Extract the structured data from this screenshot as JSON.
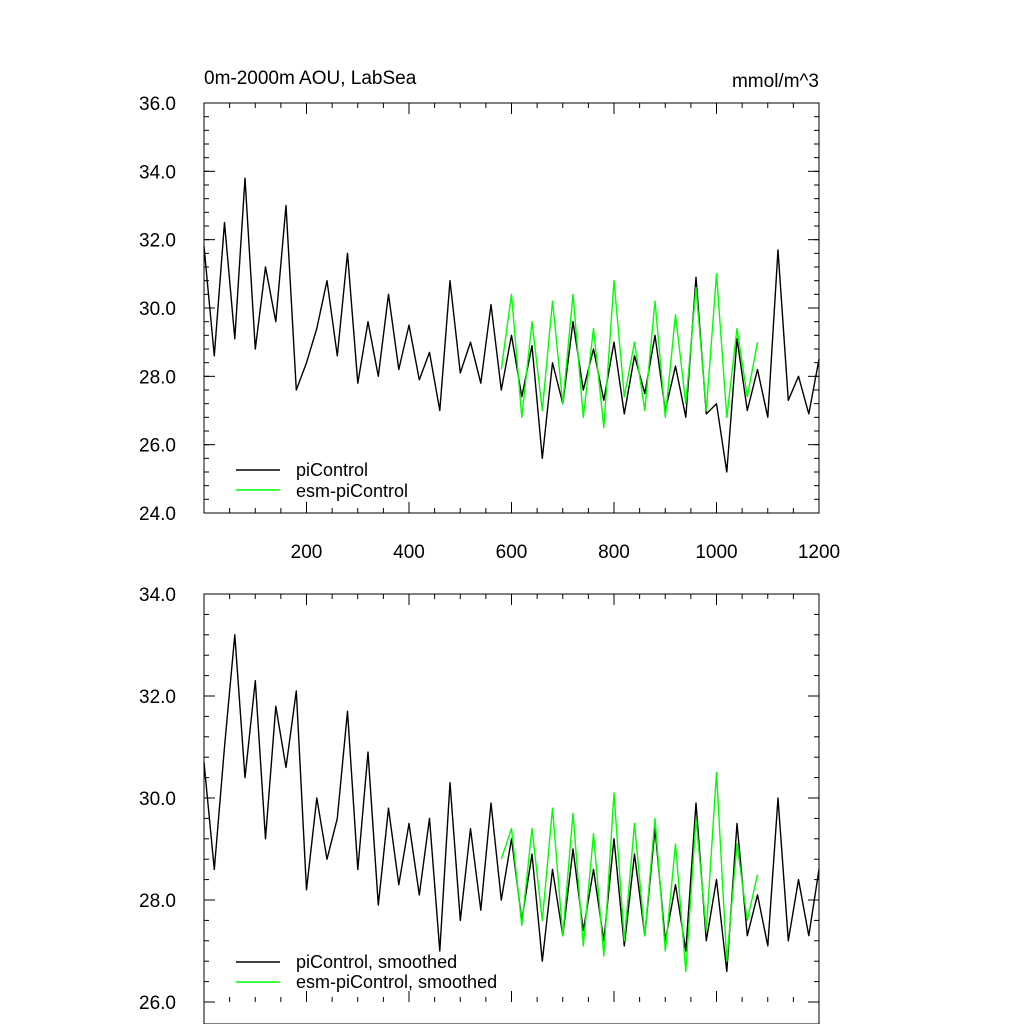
{
  "chart_data": [
    {
      "type": "line",
      "title": "0m-2000m AOU, LabSea",
      "units": "mmol/m^3",
      "xlabel": "",
      "ylabel": "",
      "xlim": [
        0,
        1200
      ],
      "ylim": [
        24.0,
        36.0
      ],
      "xticks": [
        200,
        400,
        600,
        800,
        1000,
        1200
      ],
      "xtick_labels": [
        "200",
        "400",
        "600",
        "800",
        "1000",
        "1200"
      ],
      "yticks": [
        24.0,
        26.0,
        28.0,
        30.0,
        32.0,
        34.0,
        36.0
      ],
      "ytick_labels": [
        "24.0",
        "26.0",
        "28.0",
        "30.0",
        "32.0",
        "34.0",
        "36.0"
      ],
      "grid": false,
      "legend_position": "bottom-left",
      "series": [
        {
          "name": "piControl",
          "color": "#000000",
          "x": [
            0,
            20,
            40,
            60,
            80,
            100,
            120,
            140,
            160,
            180,
            200,
            220,
            240,
            260,
            280,
            300,
            320,
            340,
            360,
            380,
            400,
            420,
            440,
            460,
            480,
            500,
            520,
            540,
            560,
            580,
            600,
            620,
            640,
            660,
            680,
            700,
            720,
            740,
            760,
            780,
            800,
            820,
            840,
            860,
            880,
            900,
            920,
            940,
            960,
            980,
            1000,
            1020,
            1040,
            1060,
            1080,
            1100,
            1120,
            1140,
            1160,
            1180,
            1200
          ],
          "y": [
            31.8,
            28.6,
            32.5,
            29.1,
            33.8,
            28.8,
            31.2,
            29.6,
            33.0,
            27.6,
            28.4,
            29.4,
            30.8,
            28.6,
            31.6,
            27.8,
            29.6,
            28.0,
            30.4,
            28.2,
            29.5,
            27.9,
            28.7,
            27.0,
            30.8,
            28.1,
            29.0,
            27.8,
            30.1,
            27.6,
            29.2,
            27.4,
            28.9,
            25.6,
            28.4,
            27.2,
            29.6,
            27.6,
            28.8,
            27.3,
            29.0,
            26.9,
            28.6,
            27.5,
            29.2,
            27.0,
            28.3,
            26.8,
            30.9,
            26.9,
            27.2,
            25.2,
            29.1,
            27.0,
            28.2,
            26.8,
            31.7,
            27.3,
            28.0,
            26.9,
            28.5
          ]
        },
        {
          "name": "esm-piControl",
          "color": "#00ff00",
          "x": [
            580,
            600,
            620,
            640,
            660,
            680,
            700,
            720,
            740,
            760,
            780,
            800,
            820,
            840,
            860,
            880,
            900,
            920,
            940,
            960,
            980,
            1000,
            1020,
            1040,
            1060,
            1080
          ],
          "y": [
            28.2,
            30.4,
            26.8,
            29.6,
            27.0,
            30.2,
            27.2,
            30.4,
            26.8,
            29.4,
            26.5,
            30.8,
            27.4,
            29.0,
            27.0,
            30.2,
            26.8,
            29.8,
            27.2,
            30.6,
            27.0,
            31.0,
            26.8,
            29.4,
            27.4,
            29.0
          ]
        }
      ]
    },
    {
      "type": "line",
      "title": "",
      "xlabel": "",
      "ylabel": "",
      "xlim": [
        0,
        1200
      ],
      "ylim": [
        26.0,
        34.0
      ],
      "yticks": [
        26.0,
        28.0,
        30.0,
        32.0,
        34.0
      ],
      "ytick_labels": [
        "26.0",
        "28.0",
        "30.0",
        "32.0",
        "34.0"
      ],
      "grid": false,
      "legend_position": "bottom-left",
      "series": [
        {
          "name": "piControl, smoothed",
          "color": "#000000",
          "x": [
            0,
            20,
            40,
            60,
            80,
            100,
            120,
            140,
            160,
            180,
            200,
            220,
            240,
            260,
            280,
            300,
            320,
            340,
            360,
            380,
            400,
            420,
            440,
            460,
            480,
            500,
            520,
            540,
            560,
            580,
            600,
            620,
            640,
            660,
            680,
            700,
            720,
            740,
            760,
            780,
            800,
            820,
            840,
            860,
            880,
            900,
            920,
            940,
            960,
            980,
            1000,
            1020,
            1040,
            1060,
            1080,
            1100,
            1120,
            1140,
            1160,
            1180,
            1200
          ],
          "y": [
            30.7,
            28.6,
            31.0,
            33.2,
            30.4,
            32.3,
            29.2,
            31.8,
            30.6,
            32.1,
            28.2,
            30.0,
            28.8,
            29.6,
            31.7,
            28.6,
            30.9,
            27.9,
            29.8,
            28.3,
            29.5,
            28.1,
            29.6,
            27.0,
            30.3,
            27.6,
            29.4,
            27.8,
            29.9,
            28.0,
            29.2,
            27.6,
            28.9,
            26.8,
            28.6,
            27.3,
            29.0,
            27.4,
            28.6,
            27.2,
            29.2,
            27.1,
            28.9,
            27.3,
            29.4,
            27.2,
            28.3,
            27.0,
            29.9,
            27.2,
            28.4,
            26.6,
            29.5,
            27.3,
            28.1,
            27.1,
            30.0,
            27.2,
            28.4,
            27.3,
            28.6
          ]
        },
        {
          "name": "esm-piControl, smoothed",
          "color": "#00ff00",
          "x": [
            580,
            600,
            620,
            640,
            660,
            680,
            700,
            720,
            740,
            760,
            780,
            800,
            820,
            840,
            860,
            880,
            900,
            920,
            940,
            960,
            980,
            1000,
            1020,
            1040,
            1060,
            1080
          ],
          "y": [
            28.8,
            29.4,
            27.5,
            29.4,
            27.6,
            29.8,
            27.3,
            29.7,
            27.1,
            29.3,
            26.9,
            30.1,
            27.2,
            29.5,
            27.3,
            29.6,
            27.0,
            29.1,
            26.6,
            29.6,
            27.4,
            30.5,
            26.8,
            29.1,
            27.6,
            28.5
          ]
        }
      ]
    }
  ]
}
